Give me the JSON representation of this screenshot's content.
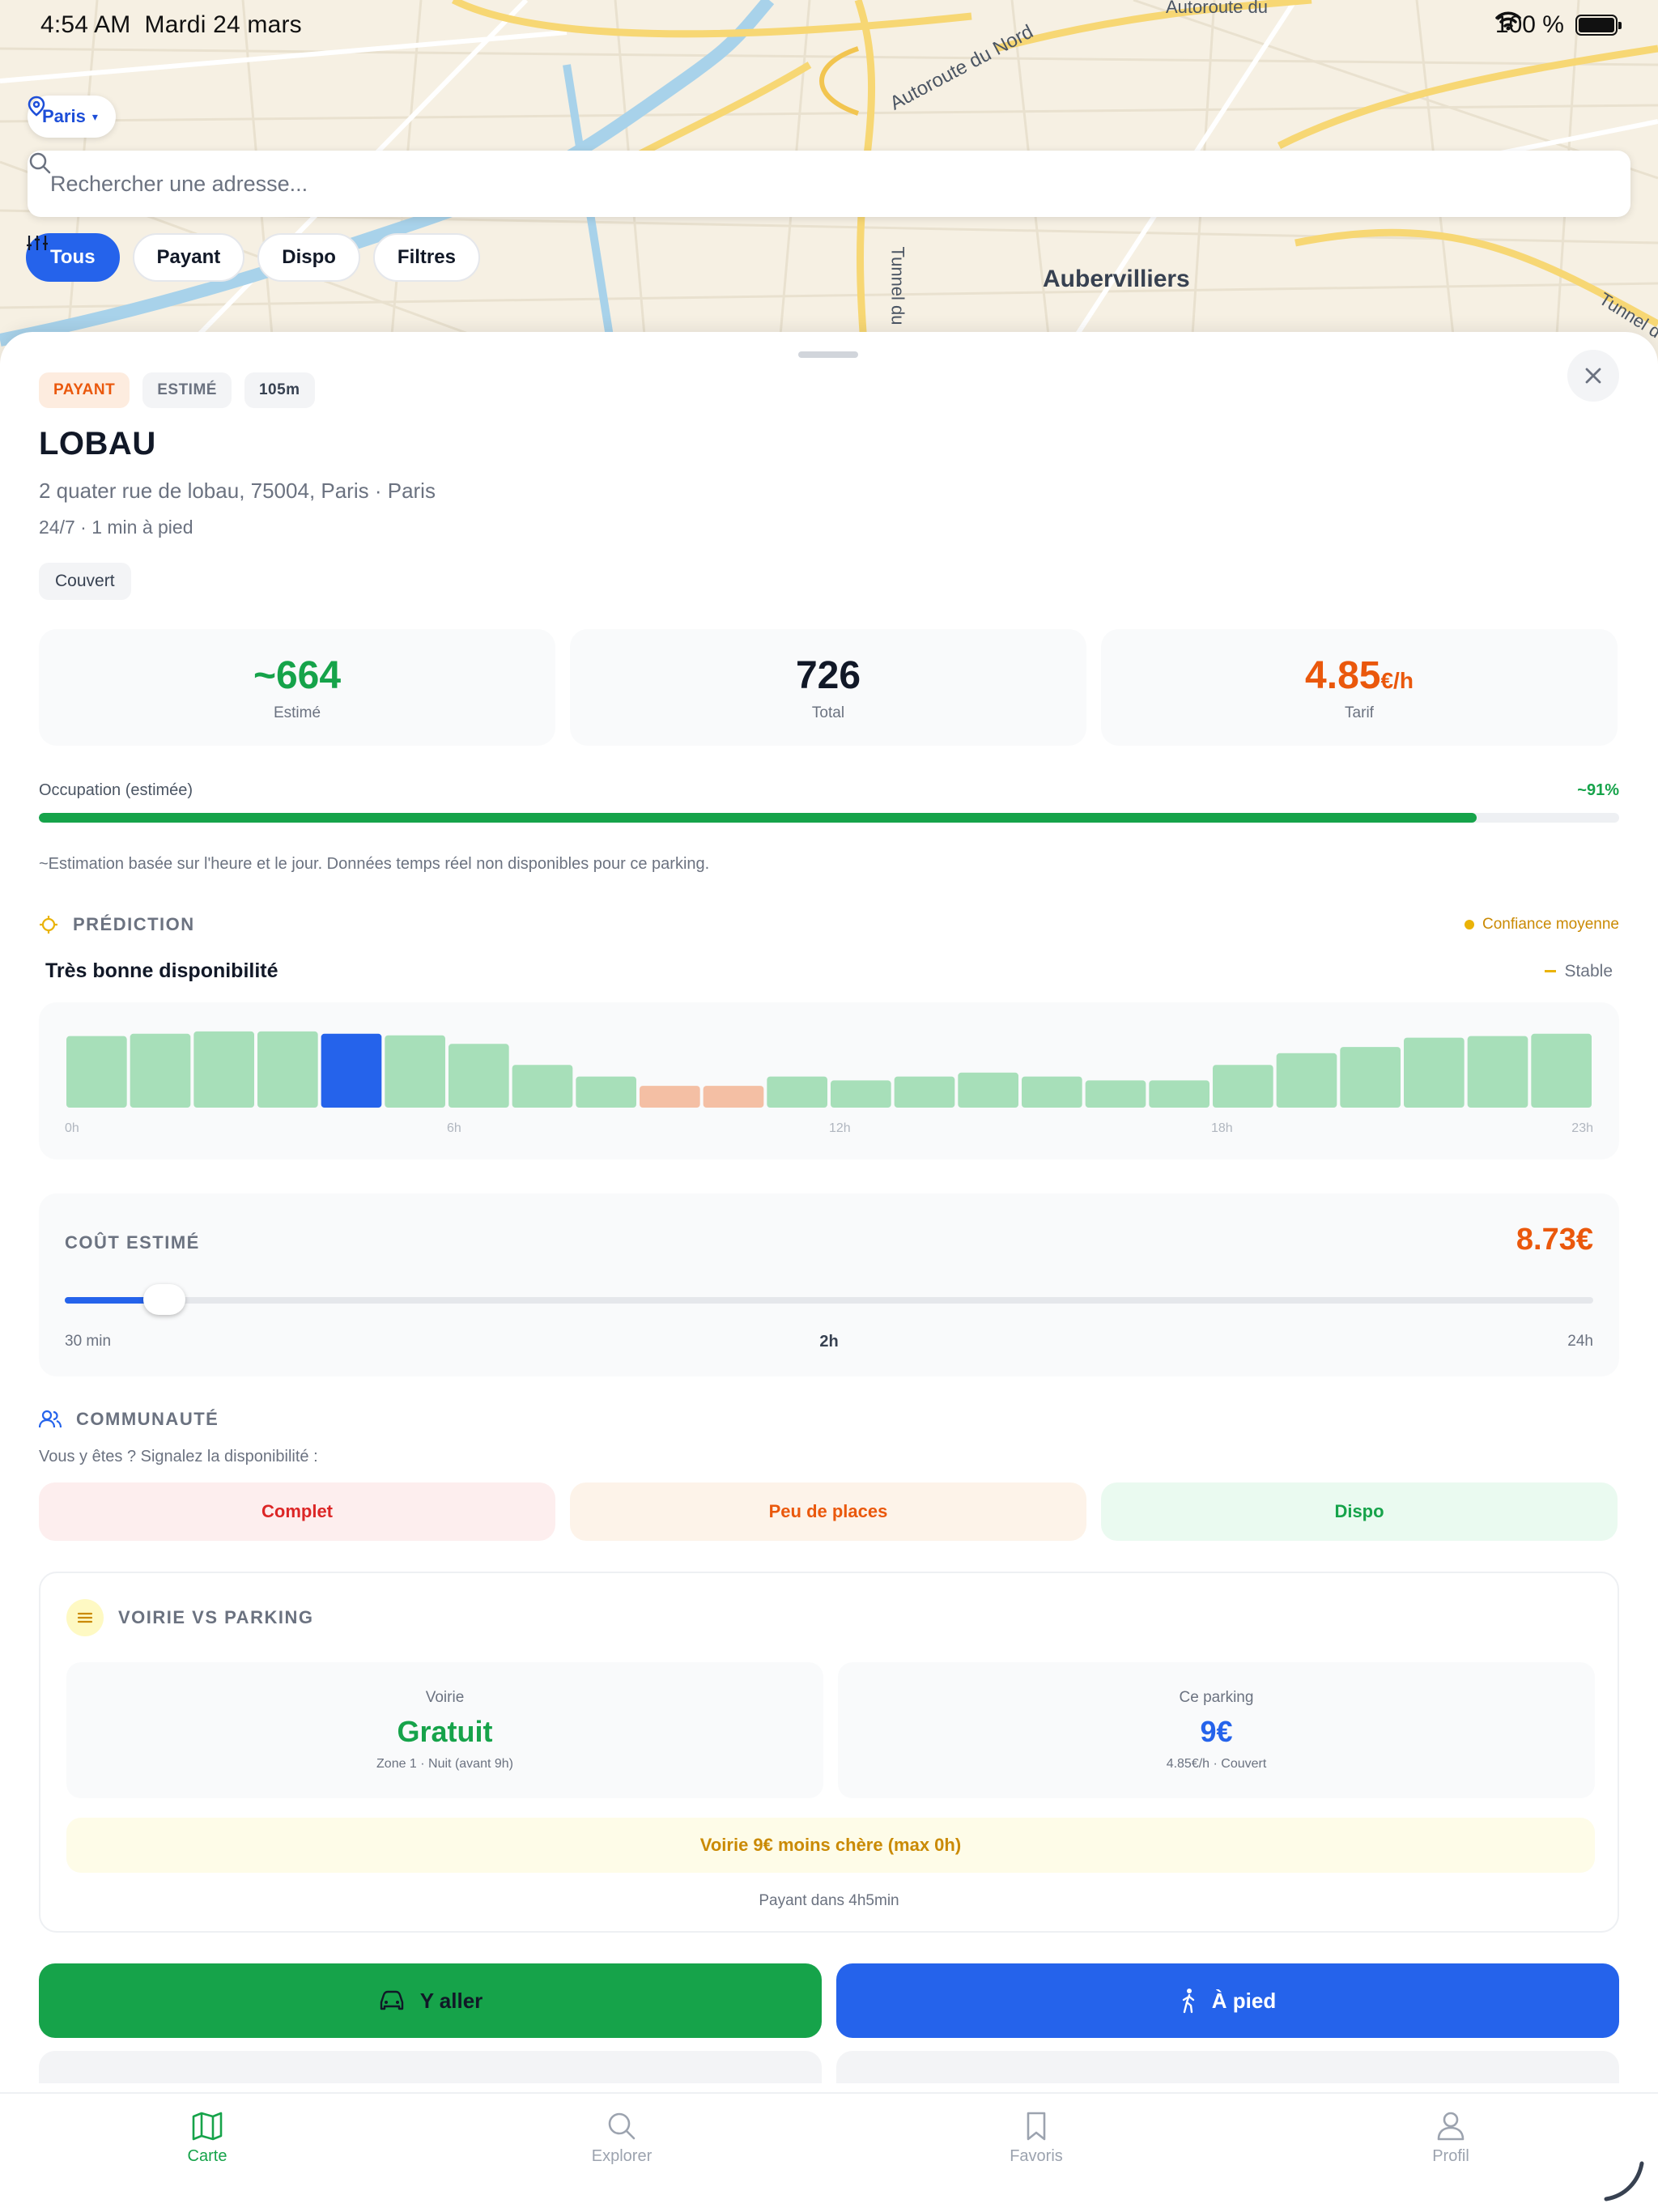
{
  "status_bar": {
    "time": "4:54 AM",
    "date": "Mardi 24 mars",
    "battery": "100 %"
  },
  "map": {
    "labels": [
      "Autoroute du Nord",
      "Tunnel du",
      "Aubervilliers",
      "Tunnel de",
      "Autoroute du"
    ],
    "city_selector": "Paris",
    "search_placeholder": "Rechercher une adresse...",
    "filters": [
      "Tous",
      "Payant",
      "Dispo",
      "Filtres"
    ],
    "active_filter": "Tous"
  },
  "parking": {
    "tags": [
      "PAYANT",
      "ESTIMÉ",
      "105m"
    ],
    "name": "LOBAU",
    "address": "2 quater rue de lobau, 75004, Paris · Paris",
    "hours": "24/7 · 1 min à pied",
    "feature": "Couvert",
    "stats": {
      "estimated": {
        "value": "~664",
        "label": "Estimé"
      },
      "total": {
        "value": "726",
        "label": "Total"
      },
      "rate": {
        "value": "4.85",
        "unit": "€/h",
        "label": "Tarif"
      }
    },
    "occupancy": {
      "label": "Occupation (estimée)",
      "value_text": "~91%",
      "fraction": 0.91
    },
    "note": "~Estimation basée sur l'heure et le jour. Données temps réel non disponibles pour ce parking."
  },
  "prediction": {
    "title": "PRÉDICTION",
    "confidence": "Confiance moyenne",
    "summary": "Très bonne disponibilité",
    "trend": "Stable",
    "hours_axis": [
      "0h",
      "6h",
      "12h",
      "18h",
      "23h"
    ],
    "current_hour": 4,
    "hourly_availability": [
      0.92,
      0.95,
      0.98,
      0.98,
      0.95,
      0.93,
      0.82,
      0.55,
      0.4,
      0.28,
      0.28,
      0.4,
      0.35,
      0.4,
      0.45,
      0.4,
      0.35,
      0.35,
      0.55,
      0.7,
      0.78,
      0.9,
      0.92,
      0.95
    ],
    "hourly_level": [
      "good",
      "good",
      "good",
      "good",
      "good",
      "good",
      "good",
      "good",
      "good",
      "low",
      "low",
      "good",
      "good",
      "good",
      "good",
      "good",
      "good",
      "good",
      "good",
      "good",
      "good",
      "good",
      "good",
      "good"
    ],
    "colors": {
      "good": "#a7dfb9",
      "low": "#f4bfa4",
      "current": "#2563eb"
    }
  },
  "cost": {
    "title": "COÛT ESTIMÉ",
    "value": "8.73€",
    "min_label": "30 min",
    "selected_label": "2h",
    "max_label": "24h",
    "slider_fraction": 0.065
  },
  "community": {
    "title": "COMMUNAUTÉ",
    "prompt": "Vous y êtes ? Signalez la disponibilité :",
    "buttons": [
      "Complet",
      "Peu de places",
      "Dispo"
    ]
  },
  "comparison": {
    "title": "VOIRIE VS PARKING",
    "street": {
      "label": "Voirie",
      "value": "Gratuit",
      "detail": "Zone 1 · Nuit (avant 9h)"
    },
    "parking": {
      "label": "Ce parking",
      "value": "9€",
      "detail": "4.85€/h · Couvert"
    },
    "banner": "Voirie 9€ moins chère (max 0h)",
    "footer": "Payant dans 4h5min"
  },
  "actions": {
    "drive": "Y aller",
    "walk": "À pied"
  },
  "tabbar": {
    "items": [
      {
        "label": "Carte",
        "icon": "map-icon"
      },
      {
        "label": "Explorer",
        "icon": "search-icon"
      },
      {
        "label": "Favoris",
        "icon": "bookmark-icon"
      },
      {
        "label": "Profil",
        "icon": "user-icon"
      }
    ],
    "active": "Carte"
  },
  "theme": {
    "accent_green": "#16a34a",
    "accent_blue": "#2563eb",
    "accent_orange": "#ea580c"
  }
}
